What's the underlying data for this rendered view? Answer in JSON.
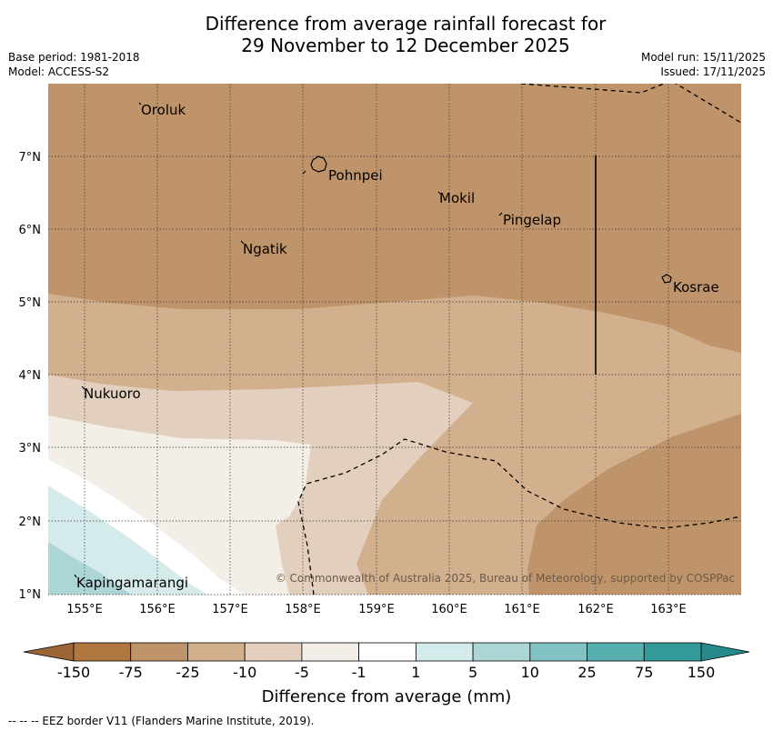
{
  "title": {
    "line1": "Difference from average rainfall forecast for",
    "line2": "29 November to 12 December 2025"
  },
  "meta": {
    "base_period": "Base period: 1981-2018",
    "model": "Model: ACCESS-S2",
    "model_run": "Model run: 15/11/2025",
    "issued": "Issued: 17/11/2025"
  },
  "map": {
    "lon_range": [
      154.5,
      164.0
    ],
    "lat_range": [
      1.0,
      8.0
    ],
    "lon_ticks": [
      "155°E",
      "156°E",
      "157°E",
      "158°E",
      "159°E",
      "160°E",
      "161°E",
      "162°E",
      "163°E"
    ],
    "lat_ticks": [
      "1°N",
      "2°N",
      "3°N",
      "4°N",
      "5°N",
      "6°N",
      "7°N"
    ],
    "places": [
      {
        "name": "Oroluk",
        "lon": 155.75,
        "lat": 7.62
      },
      {
        "name": "Pohnpei",
        "lon": 158.32,
        "lat": 6.75
      },
      {
        "name": "Mokil",
        "lon": 159.85,
        "lat": 6.42
      },
      {
        "name": "Pingelap",
        "lon": 160.73,
        "lat": 6.21
      },
      {
        "name": "Ngatik",
        "lon": 157.18,
        "lat": 5.8
      },
      {
        "name": "Kosrae",
        "lon": 163.0,
        "lat": 5.32
      },
      {
        "name": "Nukuoro",
        "lon": 154.97,
        "lat": 3.84
      },
      {
        "name": "Kapingamarangi",
        "lon": 154.88,
        "lat": 1.22
      }
    ],
    "copyright": "© Commonwealth of Australia 2025, Bureau of Meteorology, supported by COSPPac"
  },
  "colorbar": {
    "label": "Difference from average (mm)",
    "ticks": [
      "-150",
      "-75",
      "-25",
      "-10",
      "-5",
      "-1",
      "1",
      "5",
      "10",
      "25",
      "75",
      "150"
    ],
    "colors": [
      "#b07840",
      "#c0946a",
      "#d2b08e",
      "#e3cfbd",
      "#f3eee8",
      "#ffffff",
      "#d5eaea",
      "#acd6d6",
      "#82c3c3",
      "#58afaf",
      "#339999"
    ],
    "under_color": "#9c6535",
    "over_color": "#268a8a"
  },
  "footer": "--  --  -- EEZ border V11 (Flanders Marine Institute, 2019)."
}
